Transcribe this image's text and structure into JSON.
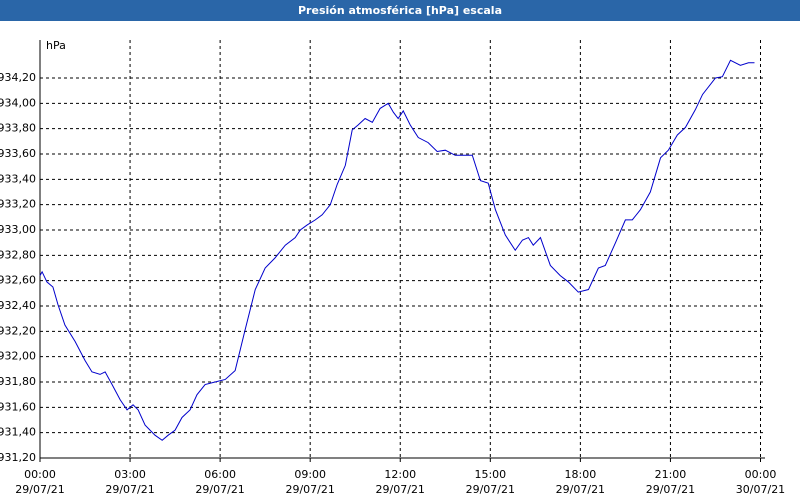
{
  "chart_data": {
    "type": "line",
    "title": "Presión atmosférica [hPa] escala",
    "y_label": "hPa",
    "xlim": [
      0,
      24.15
    ],
    "ylim": [
      931.2,
      934.5
    ],
    "xticks": [
      {
        "value": 0,
        "label": "00:00",
        "date": "29/07/21"
      },
      {
        "value": 3,
        "label": "03:00",
        "date": "29/07/21"
      },
      {
        "value": 6,
        "label": "06:00",
        "date": "29/07/21"
      },
      {
        "value": 9,
        "label": "09:00",
        "date": "29/07/21"
      },
      {
        "value": 12,
        "label": "12:00",
        "date": "29/07/21"
      },
      {
        "value": 15,
        "label": "15:00",
        "date": "29/07/21"
      },
      {
        "value": 18,
        "label": "18:00",
        "date": "29/07/21"
      },
      {
        "value": 21,
        "label": "21:00",
        "date": "29/07/21"
      },
      {
        "value": 24,
        "label": "00:00",
        "date": "30/07/21"
      }
    ],
    "yticks": [
      {
        "value": 931.2,
        "label": "931,20"
      },
      {
        "value": 931.4,
        "label": "931,40"
      },
      {
        "value": 931.6,
        "label": "931,60"
      },
      {
        "value": 931.8,
        "label": "931,80"
      },
      {
        "value": 932.0,
        "label": "932,00"
      },
      {
        "value": 932.2,
        "label": "932,20"
      },
      {
        "value": 932.4,
        "label": "932,40"
      },
      {
        "value": 932.6,
        "label": "932,60"
      },
      {
        "value": 932.8,
        "label": "932,80"
      },
      {
        "value": 933.0,
        "label": "933,00"
      },
      {
        "value": 933.2,
        "label": "933,20"
      },
      {
        "value": 933.4,
        "label": "933,40"
      },
      {
        "value": 933.6,
        "label": "933,60"
      },
      {
        "value": 933.8,
        "label": "933,80"
      },
      {
        "value": 934.0,
        "label": "934,00"
      },
      {
        "value": 934.2,
        "label": "934,20"
      }
    ],
    "grid": true,
    "color": "#0000cc",
    "x": [
      0,
      0.07,
      0.23,
      0.43,
      0.6,
      0.83,
      1.17,
      1.5,
      1.73,
      2.0,
      2.17,
      2.4,
      2.67,
      2.9,
      3.1,
      3.27,
      3.5,
      3.83,
      4.07,
      4.27,
      4.5,
      4.73,
      5.0,
      5.23,
      5.5,
      5.83,
      6.17,
      6.5,
      6.83,
      7.17,
      7.5,
      7.83,
      8.17,
      8.5,
      8.67,
      8.9,
      9.17,
      9.4,
      9.67,
      9.9,
      10.17,
      10.4,
      10.6,
      10.83,
      11.07,
      11.33,
      11.6,
      11.77,
      11.93,
      12.1,
      12.33,
      12.6,
      12.93,
      13.23,
      13.5,
      13.83,
      14.17,
      14.4,
      14.67,
      14.93,
      15.17,
      15.5,
      15.83,
      16.07,
      16.27,
      16.43,
      16.67,
      17.0,
      17.33,
      17.6,
      17.93,
      18.27,
      18.6,
      18.83,
      19.17,
      19.5,
      19.73,
      20.0,
      20.33,
      20.67,
      20.93,
      21.23,
      21.5,
      21.83,
      22.07,
      22.5,
      22.73,
      23.0,
      23.33,
      23.6,
      23.8
    ],
    "values": [
      932.64,
      932.67,
      932.59,
      932.55,
      932.41,
      932.25,
      932.12,
      931.97,
      931.88,
      931.86,
      931.88,
      931.78,
      931.66,
      931.58,
      931.62,
      931.58,
      931.46,
      931.38,
      931.34,
      931.38,
      931.42,
      931.52,
      931.58,
      931.7,
      931.78,
      931.8,
      931.82,
      931.89,
      932.21,
      932.53,
      932.7,
      932.78,
      932.88,
      932.94,
      933.0,
      933.04,
      933.08,
      933.12,
      933.2,
      933.36,
      933.51,
      933.79,
      933.83,
      933.88,
      933.85,
      933.96,
      934.0,
      933.93,
      933.88,
      933.94,
      933.83,
      933.73,
      933.69,
      933.62,
      933.63,
      933.59,
      933.59,
      933.59,
      933.39,
      933.37,
      933.16,
      932.96,
      932.84,
      932.92,
      932.94,
      932.88,
      932.94,
      932.72,
      932.64,
      932.59,
      932.51,
      932.53,
      932.7,
      932.72,
      932.9,
      933.08,
      933.08,
      933.16,
      933.3,
      933.57,
      933.63,
      933.75,
      933.81,
      933.95,
      934.07,
      934.2,
      934.21,
      934.34,
      934.3,
      934.32,
      934.32
    ]
  }
}
